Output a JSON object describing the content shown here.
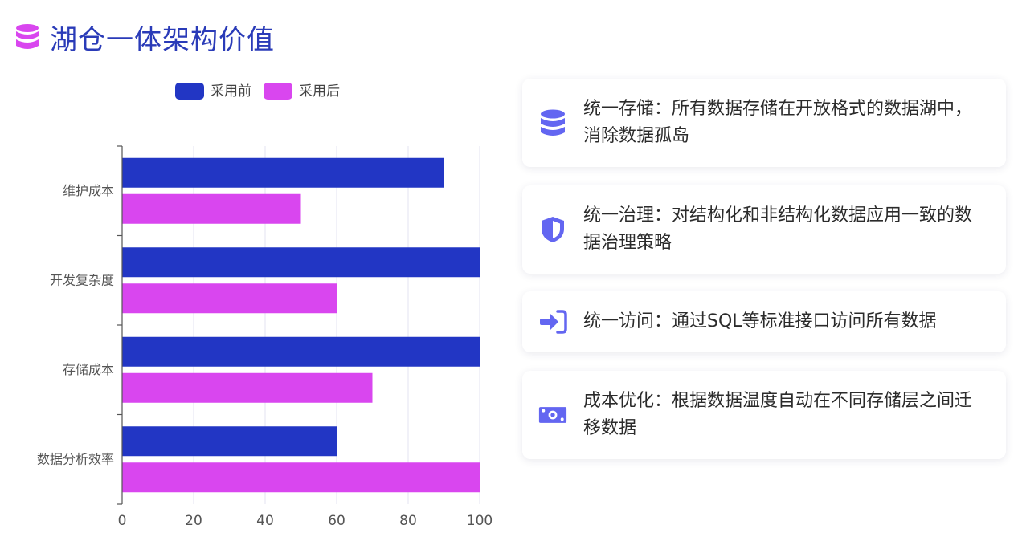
{
  "header": {
    "title": "湖仓一体架构价值",
    "icon": "database-icon",
    "icon_color": "#d946ef"
  },
  "chart_data": {
    "type": "bar",
    "orientation": "horizontal",
    "categories": [
      "维护成本",
      "开发复杂度",
      "存储成本",
      "数据分析效率"
    ],
    "series": [
      {
        "name": "采用前",
        "values": [
          90,
          100,
          100,
          60
        ],
        "color": "#2236c4"
      },
      {
        "name": "采用后",
        "values": [
          50,
          60,
          70,
          100
        ],
        "color": "#d946ef"
      }
    ],
    "xlim": [
      0,
      100
    ],
    "xticks": [
      0,
      20,
      40,
      60,
      80,
      100
    ],
    "grid": true,
    "legend": "top-center"
  },
  "cards": [
    {
      "icon": "database-icon",
      "text": "统一存储：所有数据存储在开放格式的数据湖中，消除数据孤岛"
    },
    {
      "icon": "shield-icon",
      "text": "统一治理：对结构化和非结构化数据应用一致的数据治理策略"
    },
    {
      "icon": "sign-in-icon",
      "text": "统一访问：通过SQL等标准接口访问所有数据"
    },
    {
      "icon": "money-bill-icon",
      "text": "成本优化：根据数据温度自动在不同存储层之间迁移数据"
    }
  ],
  "colors": {
    "accent": "#6366f1",
    "title": "#2a3bb8"
  }
}
